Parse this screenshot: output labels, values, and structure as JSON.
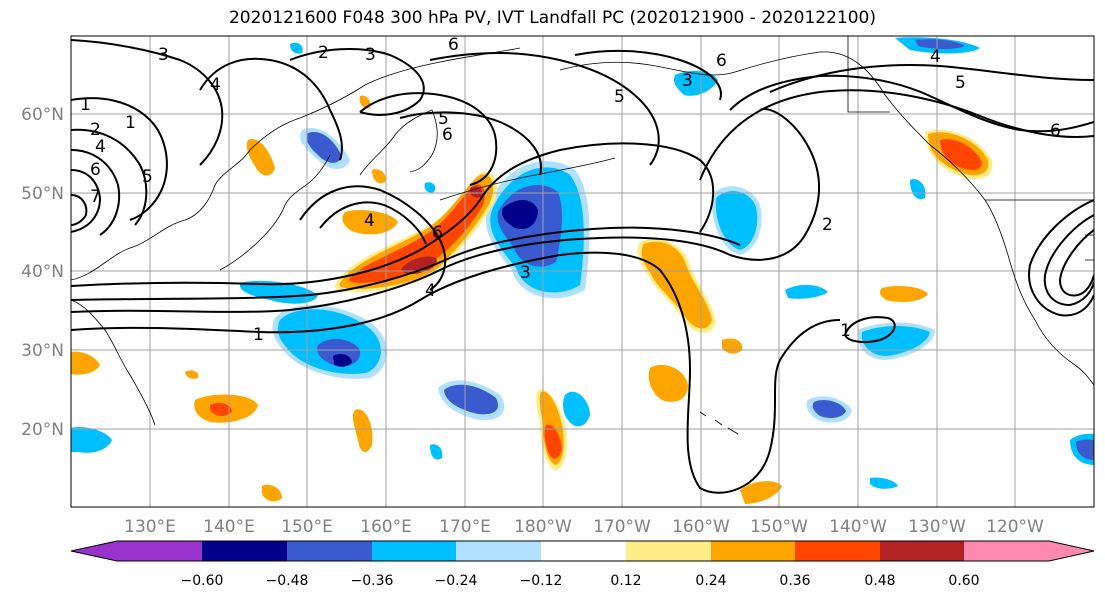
{
  "title": "2020121600 F048 300 hPa PV, IVT Landfall PC (2020121900 - 2020122100)",
  "lat_labels": [
    "60°N",
    "50°N",
    "40°N",
    "30°N",
    "20°N"
  ],
  "lon_labels": [
    "130°E",
    "140°E",
    "150°E",
    "160°E",
    "170°E",
    "180°W",
    "170°W",
    "160°W",
    "150°W",
    "140°W",
    "130°W",
    "120°W"
  ],
  "colorbar": {
    "colors": [
      "#9932cc",
      "#00008b",
      "#3a5bcf",
      "#00bfff",
      "#b0e0ff",
      "#ffffff",
      "#ffee88",
      "#ffa500",
      "#ff4500",
      "#b22222",
      "#ff88b0"
    ],
    "tick_labels": [
      "−0.60",
      "−0.48",
      "−0.36",
      "−0.24",
      "−0.12",
      "0.12",
      "0.24",
      "0.36",
      "0.48",
      "0.60"
    ]
  },
  "pv_contour_labels": [
    "1",
    "2",
    "3",
    "4",
    "5",
    "6",
    "7",
    "1",
    "2",
    "3",
    "4",
    "5",
    "6",
    "4",
    "6",
    "3",
    "4",
    "1",
    "2",
    "1",
    "5",
    "6",
    "4",
    "3",
    "6",
    "5",
    "6"
  ],
  "colors": {
    "frame": "#000000",
    "grid": "#a0a0a0",
    "coast": "#000000"
  }
}
